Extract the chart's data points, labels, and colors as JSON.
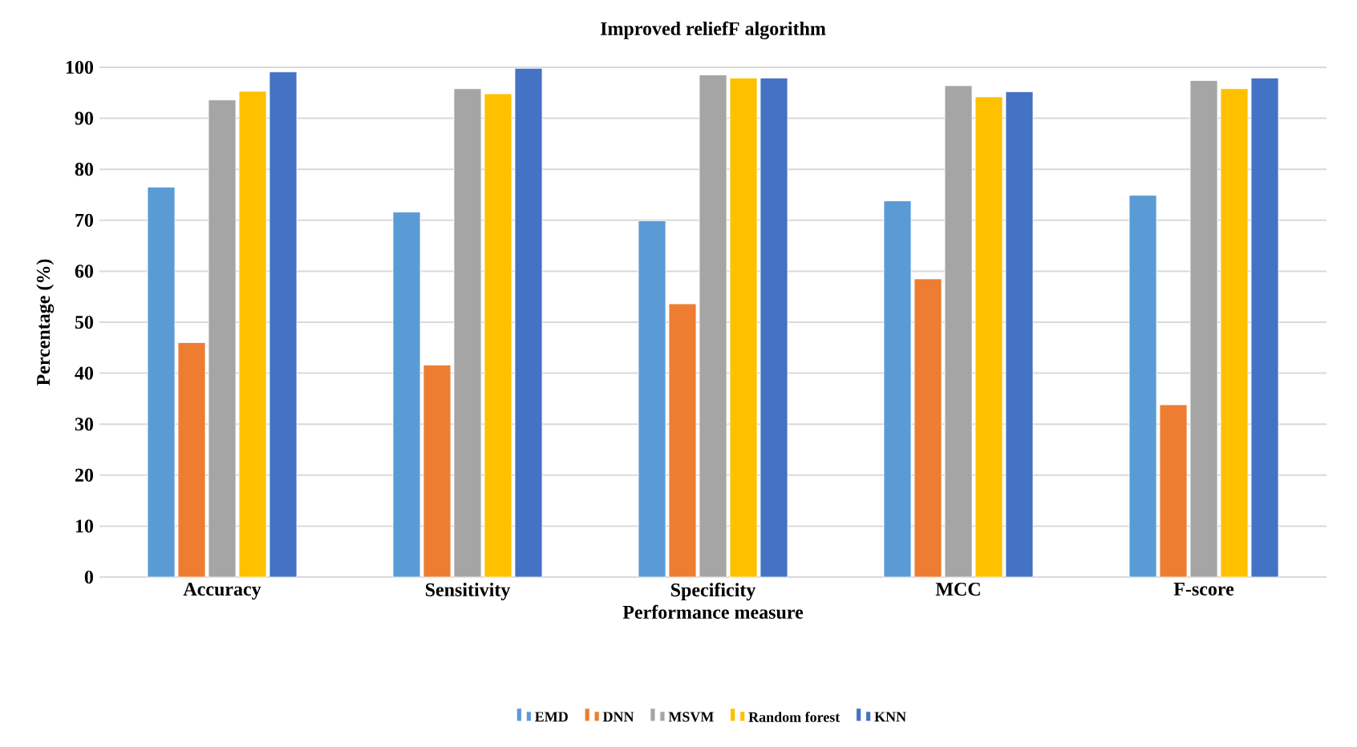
{
  "chart_data": {
    "type": "bar",
    "title": "Improved reliefF algorithm",
    "xlabel": "Performance measure",
    "ylabel": "Percentage (%)",
    "categories": [
      "Accuracy",
      "Sensitivity",
      "Specificity",
      "MCC",
      "F-score"
    ],
    "series": [
      {
        "name": "EMD",
        "color": "#5b9bd5",
        "values": [
          76.5,
          71.6,
          69.9,
          73.8,
          74.9
        ]
      },
      {
        "name": "DNN",
        "color": "#ed7d31",
        "values": [
          46.0,
          41.6,
          53.6,
          58.5,
          33.8
        ]
      },
      {
        "name": "MSVM",
        "color": "#a5a5a5",
        "values": [
          93.6,
          95.8,
          98.5,
          96.4,
          97.4
        ]
      },
      {
        "name": "Random forest",
        "color": "#ffc000",
        "values": [
          95.3,
          94.8,
          97.9,
          94.2,
          95.8
        ]
      },
      {
        "name": "KNN",
        "color": "#4472c4",
        "values": [
          99.1,
          99.8,
          97.9,
          95.2,
          97.9
        ]
      }
    ],
    "ylim": [
      0,
      100
    ],
    "yticks": [
      0,
      10,
      20,
      30,
      40,
      50,
      60,
      70,
      80,
      90,
      100
    ],
    "grid": "y",
    "legend": "bottom"
  }
}
